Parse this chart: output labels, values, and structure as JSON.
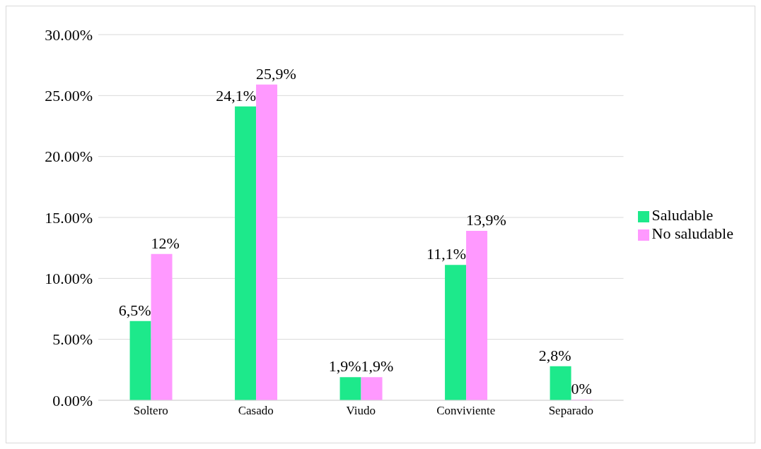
{
  "chart_data": {
    "type": "bar",
    "categories": [
      "Soltero",
      "Casado",
      "Viudo",
      "Conviviente",
      "Separado"
    ],
    "series": [
      {
        "name": "Saludable",
        "color": "#1de98b",
        "values": [
          6.5,
          24.1,
          1.9,
          11.1,
          2.8
        ],
        "value_labels": [
          "6,5%",
          "24,1%",
          "1,9%",
          "11,1%",
          "2,8%"
        ]
      },
      {
        "name": "No saludable",
        "color": "#ff99ff",
        "values": [
          12,
          25.9,
          1.9,
          13.9,
          0
        ],
        "value_labels": [
          "12%",
          "25,9%",
          "1,9%",
          "13,9%",
          "0%"
        ]
      }
    ],
    "ylim": [
      0,
      30
    ],
    "yticks": [
      {
        "value": 0,
        "label": "0.00%"
      },
      {
        "value": 5,
        "label": "5.00%"
      },
      {
        "value": 10,
        "label": "10.00%"
      },
      {
        "value": 15,
        "label": "15.00%"
      },
      {
        "value": 20,
        "label": "20.00%"
      },
      {
        "value": 25,
        "label": "25.00%"
      },
      {
        "value": 30,
        "label": "30.00%"
      }
    ],
    "grid": "y",
    "legend": "right"
  }
}
